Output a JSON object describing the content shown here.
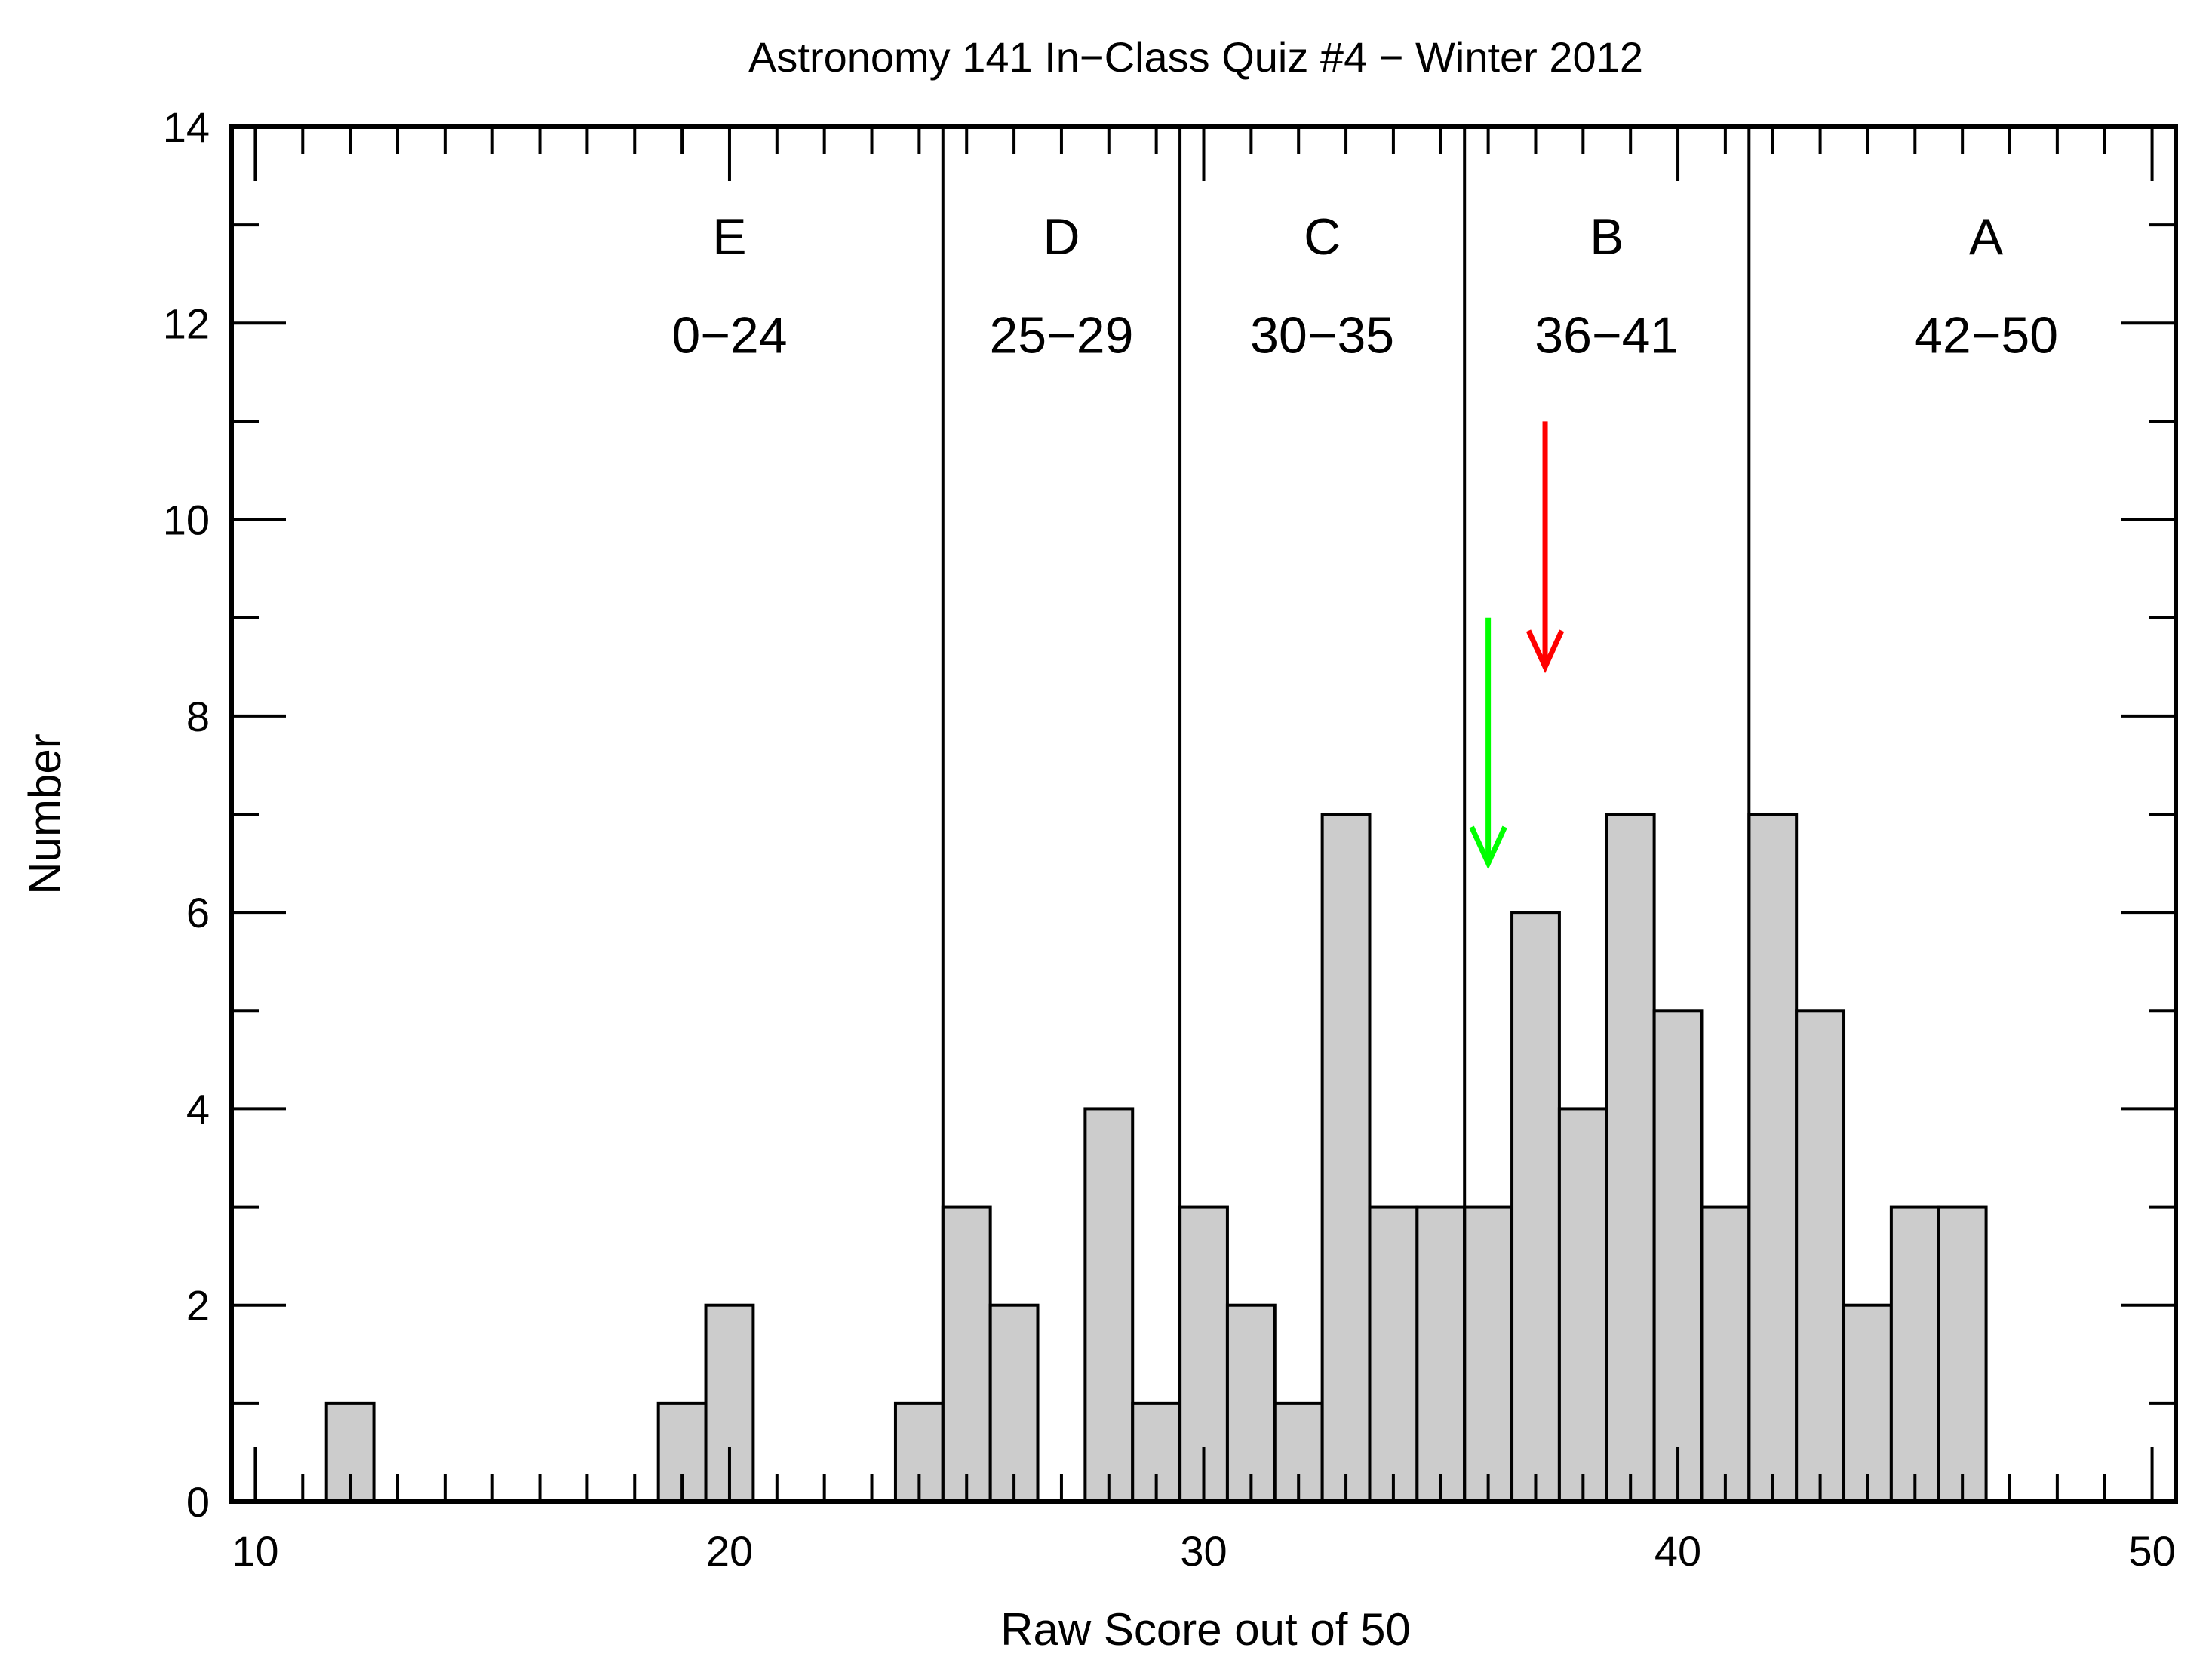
{
  "chart_data": {
    "type": "bar",
    "title": "Astronomy 141 In−Class Quiz #4 − Winter 2012",
    "xlabel": "Raw Score out of 50",
    "ylabel": "Number",
    "xlim": [
      9.5,
      50.5
    ],
    "ylim": [
      0,
      14
    ],
    "x_ticks": [
      "10",
      "20",
      "30",
      "40",
      "50"
    ],
    "y_ticks": [
      "0",
      "2",
      "4",
      "6",
      "8",
      "10",
      "12",
      "14"
    ],
    "bin_width": 1,
    "x": [
      12,
      19,
      20,
      24,
      25,
      26,
      28,
      29,
      30,
      31,
      32,
      33,
      34,
      35,
      36,
      37,
      38,
      39,
      40,
      41,
      42,
      43,
      44,
      45,
      46
    ],
    "values": [
      1,
      1,
      2,
      1,
      3,
      2,
      4,
      1,
      3,
      2,
      1,
      7,
      3,
      3,
      3,
      6,
      4,
      7,
      5,
      3,
      7,
      5,
      2,
      3,
      3
    ],
    "bar_color": "#cccccc",
    "grade_boundaries": [
      24.5,
      29.5,
      35.5,
      41.5
    ],
    "grade_bands": [
      {
        "grade": "E",
        "range": "0−24",
        "x_center": 20
      },
      {
        "grade": "D",
        "range": "25−29",
        "x_center": 27
      },
      {
        "grade": "C",
        "range": "30−35",
        "x_center": 32.5
      },
      {
        "grade": "B",
        "range": "36−41",
        "x_center": 38.5
      },
      {
        "grade": "A",
        "range": "42−50",
        "x_center": 46.5
      }
    ],
    "markers": [
      {
        "x": 37.2,
        "y_top": 11,
        "y_tip": 8.5,
        "color": "#ff0000"
      },
      {
        "x": 36.0,
        "y_top": 9,
        "y_tip": 6.5,
        "color": "#00ff00"
      }
    ],
    "grid": false
  }
}
